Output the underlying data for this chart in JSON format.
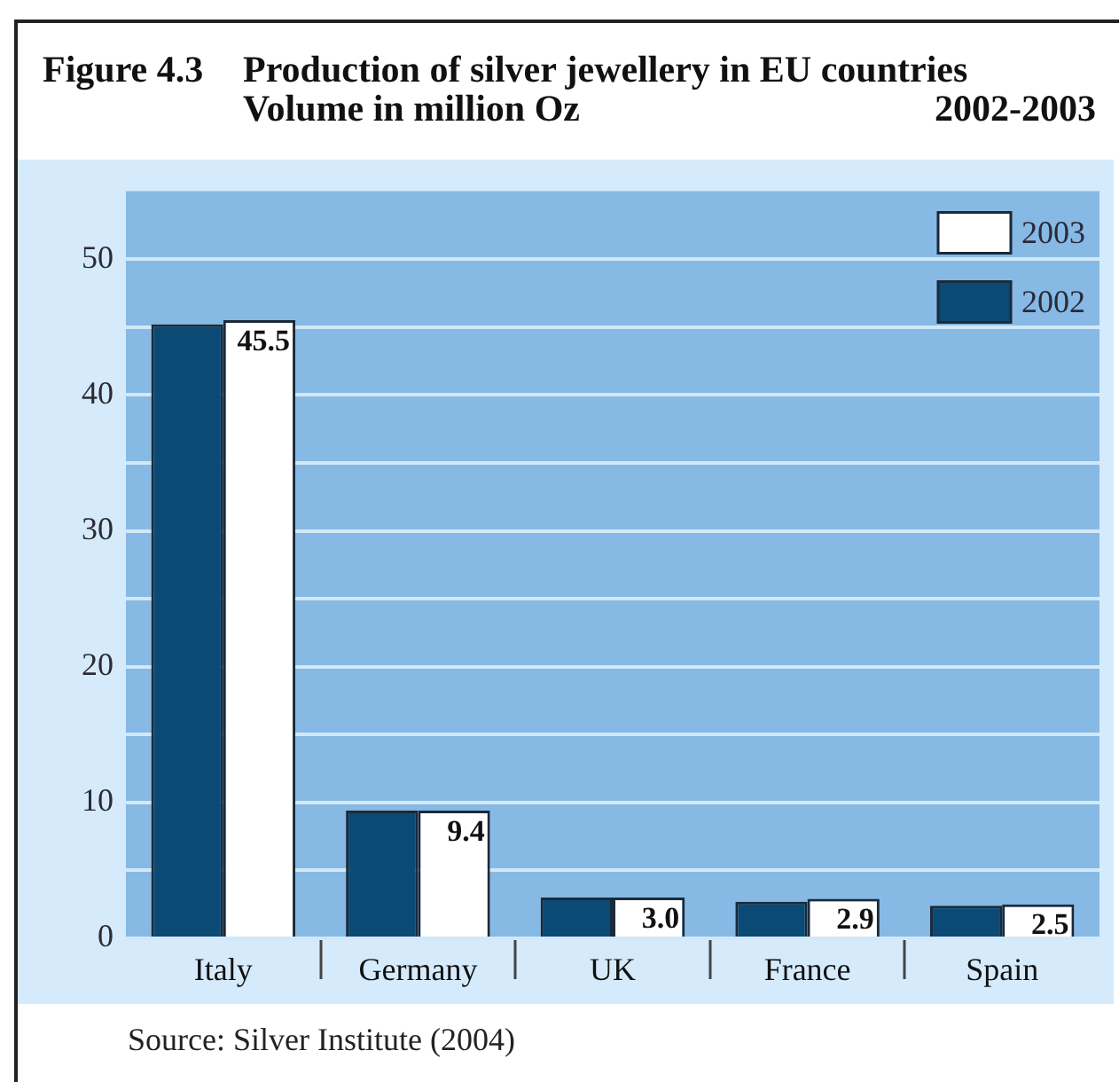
{
  "chart_data": {
    "type": "bar",
    "title": "Production of silver jewellery in EU countries",
    "subtitle": "Volume in million Oz",
    "annotations": [
      "Figure 4.3",
      "2002-2003",
      "Source: Silver Institute (2004)"
    ],
    "categories": [
      "Italy",
      "Germany",
      "UK",
      "France",
      "Spain"
    ],
    "series": [
      {
        "name": "2002",
        "color": "#0c4a76",
        "values": [
          45.2,
          9.4,
          3.0,
          2.7,
          2.4
        ]
      },
      {
        "name": "2003",
        "color": "#ffffff",
        "values": [
          45.5,
          9.4,
          3.0,
          2.9,
          2.5
        ],
        "value_labels": [
          "45.5",
          "9.4",
          "3.0",
          "2.9",
          "2.5"
        ]
      }
    ],
    "ylim": [
      0,
      55
    ],
    "yticks": [
      0,
      {
        "value": 5,
        "label": null
      },
      10,
      {
        "value": 15,
        "label": null
      },
      20,
      {
        "value": 25,
        "label": null
      },
      30,
      {
        "value": 35,
        "label": null
      },
      40,
      {
        "value": 45,
        "label": null
      },
      50
    ],
    "grid": "y",
    "legend": "top right"
  }
}
